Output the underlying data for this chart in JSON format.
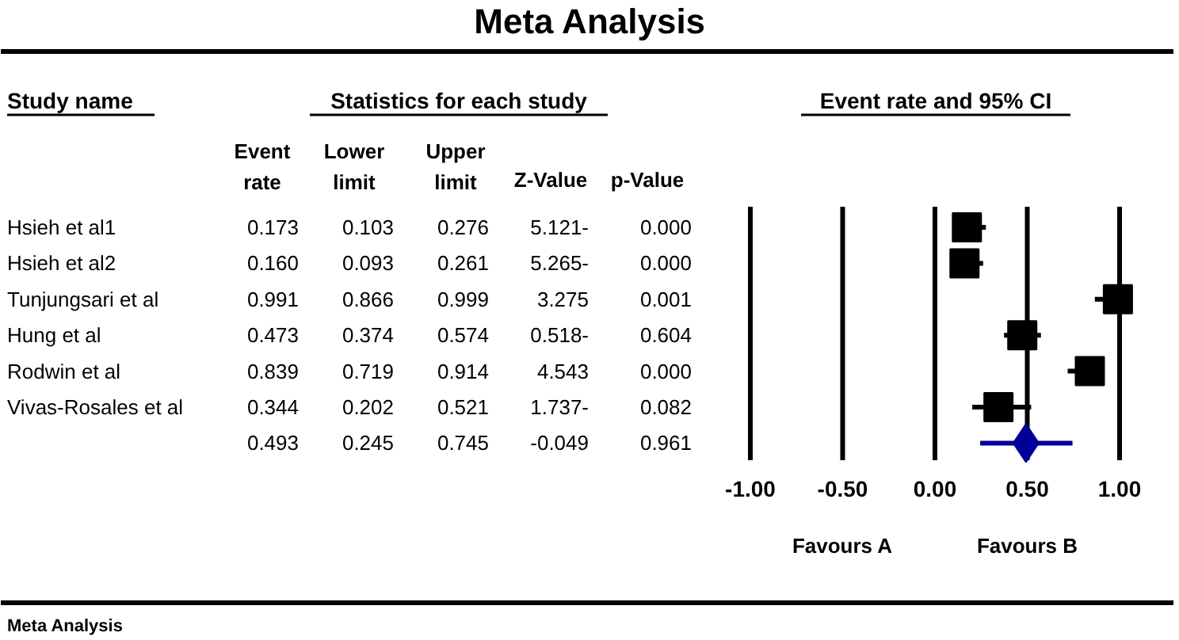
{
  "chart_data": [
    {
      "type": "other",
      "title": "Meta Analysis",
      "annotations": [
        "Study name",
        "Statistics for each study",
        "Event rate and 95% CI",
        "Event\nrate",
        "Lower\nlimit",
        "Upper\nlimit",
        "Z-Value",
        "p-Value",
        "Hsieh et al1",
        "0.173",
        "0.103",
        "0.276",
        "5.121-",
        "0.000",
        "Hsieh et al2",
        "0.160",
        "0.093",
        "0.261",
        "5.265-",
        "0.000",
        "Tunjungsari et al",
        "0.991",
        "0.866",
        "0.999",
        "3.275",
        "0.001",
        "Hung et al",
        "0.473",
        "0.374",
        "0.574",
        "0.518-",
        "0.604",
        "Rodwin et al",
        "0.839",
        "0.719",
        "0.914",
        "4.543",
        "0.000",
        "Vivas-Rosales et al",
        "0.344",
        "0.202",
        "0.521",
        "1.737-",
        "0.082",
        "0.493",
        "0.245",
        "0.745",
        "-0.049",
        "0.961",
        "Meta Analysis"
      ]
    },
    {
      "type": "scatter",
      "orientation": "horizontal",
      "categories": [
        null,
        null,
        null,
        null,
        null,
        null,
        null
      ],
      "series": [
        {
          "type": "scatter",
          "marker": "square",
          "color": "#000000",
          "values": [
            0.173,
            0.16,
            0.991,
            0.473,
            0.839,
            0.344,
            null
          ],
          "errors": [
            [
              0.103,
              0.276
            ],
            [
              0.093,
              0.261
            ],
            [
              0.866,
              0.999
            ],
            [
              0.374,
              0.574
            ],
            [
              0.719,
              0.914
            ],
            [
              0.202,
              0.521
            ],
            null
          ]
        },
        {
          "type": "scatter",
          "marker": "diamond",
          "color": "#000099",
          "values": [
            null,
            null,
            null,
            null,
            null,
            null,
            0.493
          ],
          "errors": [
            null,
            null,
            null,
            null,
            null,
            null,
            [
              0.245,
              0.745
            ]
          ]
        }
      ],
      "xlim": [
        -1,
        1
      ],
      "xticks": [
        {
          "value": -1,
          "label": "-1.00"
        },
        {
          "value": -0.5,
          "label": "-0.50"
        },
        {
          "value": 0,
          "label": "0.00"
        },
        {
          "value": 0.5,
          "label": "0.50"
        },
        {
          "value": 1,
          "label": "1.00"
        }
      ],
      "grid": "x",
      "annotations": [
        "Favours A",
        "Favours B"
      ]
    }
  ]
}
